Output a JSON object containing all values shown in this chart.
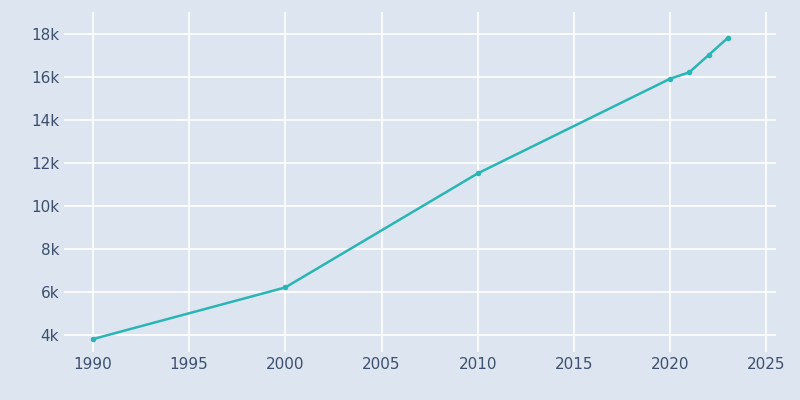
{
  "years": [
    1990,
    2000,
    2010,
    2020,
    2021,
    2022,
    2023
  ],
  "population": [
    3800,
    6200,
    11500,
    15900,
    16200,
    17000,
    17800
  ],
  "line_color": "#2ab5b5",
  "marker_color": "#2ab5b5",
  "bg_color": "#dde6f0",
  "plot_bg_color": "#dde6f0",
  "grid_color": "#c5d0de",
  "text_color": "#3d4f6e",
  "xlim": [
    1988.5,
    2025.5
  ],
  "ylim": [
    3200,
    19000
  ],
  "xticks": [
    1990,
    1995,
    2000,
    2005,
    2010,
    2015,
    2020,
    2025
  ],
  "yticks": [
    4000,
    6000,
    8000,
    10000,
    12000,
    14000,
    16000,
    18000
  ],
  "ytick_labels": [
    "4k",
    "6k",
    "8k",
    "10k",
    "12k",
    "14k",
    "16k",
    "18k"
  ],
  "tick_fontsize": 11,
  "line_width": 1.8,
  "marker_size": 4
}
